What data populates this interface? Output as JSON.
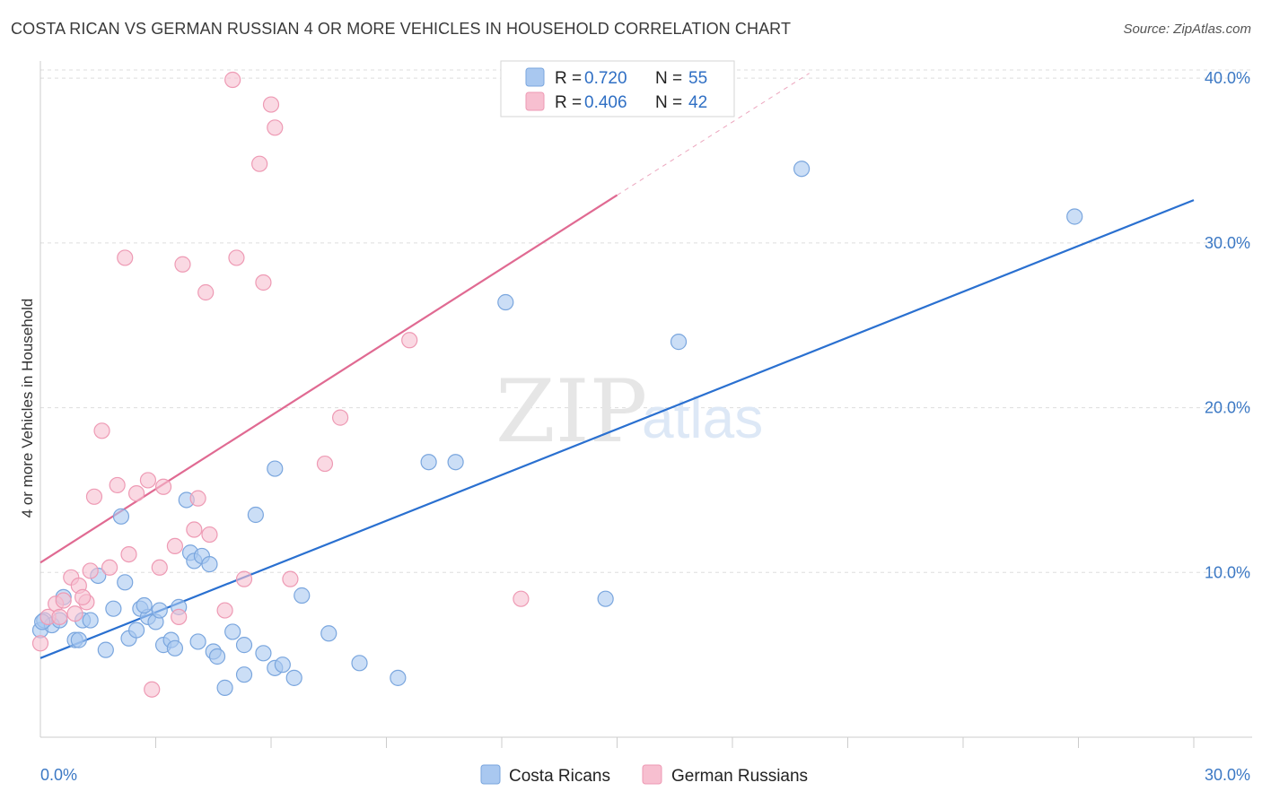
{
  "header": {
    "title": "COSTA RICAN VS GERMAN RUSSIAN 4 OR MORE VEHICLES IN HOUSEHOLD CORRELATION CHART",
    "source": "Source: ZipAtlas.com"
  },
  "watermark": {
    "zip": "ZIP",
    "atlas": "atlas"
  },
  "legend": {
    "rows": [
      {
        "r_label": "R =",
        "r_value": "0.720",
        "n_label": "N =",
        "n_value": "55"
      },
      {
        "r_label": "R =",
        "r_value": "0.406",
        "n_label": "N =",
        "n_value": "42"
      }
    ]
  },
  "colors": {
    "blue_fill": "#a9c8f0",
    "blue_stroke": "#7aa6de",
    "blue_line": "#2a70d0",
    "pink_fill": "#f7bfd0",
    "pink_stroke": "#ee9ab4",
    "pink_line": "#e06a92",
    "grid": "#dddddd",
    "tick_text": "#3b78c4"
  },
  "chart_data": {
    "type": "scatter",
    "title": "COSTA RICAN VS GERMAN RUSSIAN 4 OR MORE VEHICLES IN HOUSEHOLD CORRELATION CHART",
    "xlabel": "",
    "ylabel": "4 or more Vehicles in Household",
    "xlim": [
      0,
      30
    ],
    "ylim": [
      0,
      40.5
    ],
    "x_tick_labels": [
      "0.0%",
      "30.0%"
    ],
    "y_ticks": [
      10,
      20,
      30,
      40
    ],
    "y_tick_labels": [
      "10.0%",
      "20.0%",
      "30.0%",
      "40.0%"
    ],
    "grid": true,
    "legend_position": "top-center",
    "series": [
      {
        "name": "Costa Ricans",
        "r": 0.72,
        "n": 55,
        "color": "#a9c8f0",
        "trend": {
          "x": [
            0,
            30
          ],
          "y": [
            4.8,
            32.6
          ]
        },
        "points": [
          [
            0.0,
            6.5
          ],
          [
            0.1,
            7.1
          ],
          [
            0.3,
            6.8
          ],
          [
            0.5,
            7.1
          ],
          [
            0.6,
            8.5
          ],
          [
            0.9,
            5.9
          ],
          [
            1.1,
            7.1
          ],
          [
            1.3,
            7.1
          ],
          [
            1.5,
            9.8
          ],
          [
            1.7,
            5.3
          ],
          [
            1.9,
            7.8
          ],
          [
            2.1,
            13.4
          ],
          [
            2.2,
            9.4
          ],
          [
            2.3,
            6.0
          ],
          [
            2.5,
            6.5
          ],
          [
            2.6,
            7.8
          ],
          [
            2.8,
            7.3
          ],
          [
            3.0,
            7.0
          ],
          [
            3.1,
            7.7
          ],
          [
            3.2,
            5.6
          ],
          [
            3.4,
            5.9
          ],
          [
            3.5,
            5.4
          ],
          [
            3.6,
            7.9
          ],
          [
            3.8,
            14.4
          ],
          [
            3.9,
            11.2
          ],
          [
            4.0,
            10.7
          ],
          [
            4.2,
            11.0
          ],
          [
            4.4,
            10.5
          ],
          [
            4.5,
            5.2
          ],
          [
            4.6,
            4.9
          ],
          [
            4.8,
            3.0
          ],
          [
            5.0,
            6.4
          ],
          [
            5.3,
            3.8
          ],
          [
            5.3,
            5.6
          ],
          [
            5.6,
            13.5
          ],
          [
            5.8,
            5.1
          ],
          [
            6.1,
            4.2
          ],
          [
            6.3,
            4.4
          ],
          [
            6.1,
            16.3
          ],
          [
            6.6,
            3.6
          ],
          [
            6.8,
            8.6
          ],
          [
            7.5,
            6.3
          ],
          [
            8.3,
            4.5
          ],
          [
            9.3,
            3.6
          ],
          [
            10.1,
            16.7
          ],
          [
            10.8,
            16.7
          ],
          [
            12.1,
            26.4
          ],
          [
            14.7,
            8.4
          ],
          [
            16.6,
            24.0
          ],
          [
            19.8,
            34.5
          ],
          [
            26.9,
            31.6
          ],
          [
            0.05,
            7.0
          ],
          [
            2.7,
            8.0
          ],
          [
            1.0,
            5.9
          ],
          [
            4.1,
            5.8
          ]
        ]
      },
      {
        "name": "German Russians",
        "r": 0.406,
        "n": 42,
        "color": "#f7bfd0",
        "trend": {
          "x": [
            0,
            15
          ],
          "y": [
            10.6,
            32.9
          ],
          "dashed_to": {
            "x": 20,
            "y": 40.3
          }
        },
        "points": [
          [
            0.0,
            5.7
          ],
          [
            0.2,
            7.3
          ],
          [
            0.4,
            8.1
          ],
          [
            0.6,
            8.3
          ],
          [
            0.8,
            9.7
          ],
          [
            0.9,
            7.5
          ],
          [
            1.0,
            9.2
          ],
          [
            1.2,
            8.2
          ],
          [
            1.3,
            10.1
          ],
          [
            1.4,
            14.6
          ],
          [
            1.6,
            18.6
          ],
          [
            1.8,
            10.3
          ],
          [
            2.0,
            15.3
          ],
          [
            2.2,
            29.1
          ],
          [
            2.3,
            11.1
          ],
          [
            2.5,
            14.8
          ],
          [
            2.8,
            15.6
          ],
          [
            2.9,
            2.9
          ],
          [
            3.1,
            10.3
          ],
          [
            3.2,
            15.2
          ],
          [
            3.5,
            11.6
          ],
          [
            3.6,
            7.3
          ],
          [
            3.7,
            28.7
          ],
          [
            4.0,
            12.6
          ],
          [
            4.1,
            14.5
          ],
          [
            4.3,
            27.0
          ],
          [
            4.4,
            12.3
          ],
          [
            4.8,
            7.7
          ],
          [
            5.0,
            39.9
          ],
          [
            5.1,
            29.1
          ],
          [
            5.3,
            9.6
          ],
          [
            5.7,
            34.8
          ],
          [
            5.8,
            27.6
          ],
          [
            6.0,
            38.4
          ],
          [
            6.1,
            37.0
          ],
          [
            6.5,
            9.6
          ],
          [
            7.4,
            16.6
          ],
          [
            7.8,
            19.4
          ],
          [
            9.6,
            24.1
          ],
          [
            12.5,
            8.4
          ],
          [
            0.5,
            7.3
          ],
          [
            1.1,
            8.5
          ]
        ]
      }
    ]
  },
  "bottom_legend": {
    "items": [
      "Costa Ricans",
      "German Russians"
    ]
  }
}
